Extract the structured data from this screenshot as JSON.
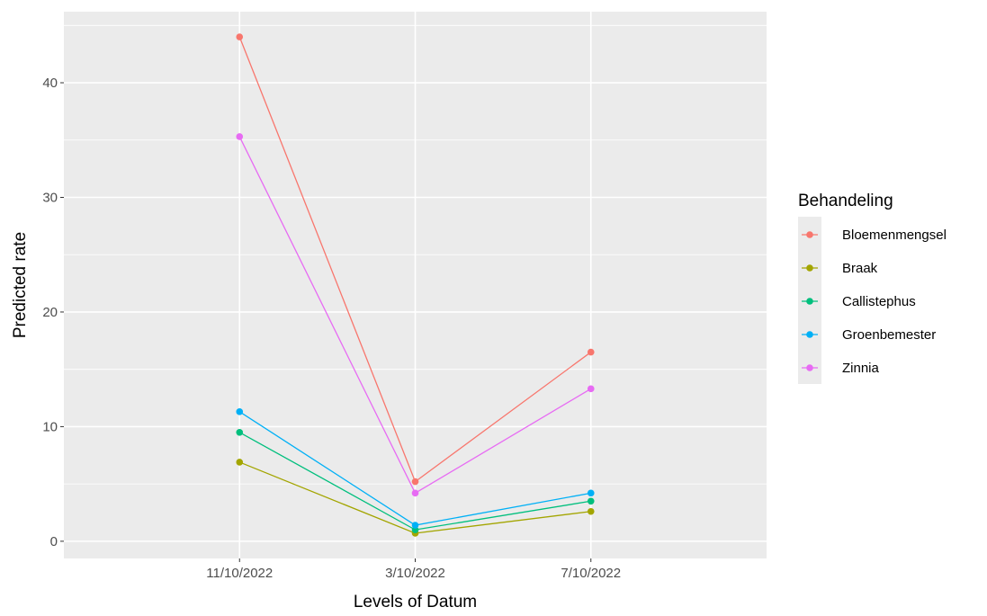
{
  "chart_data": {
    "type": "line",
    "title": "",
    "xlabel": "Levels of Datum",
    "ylabel": "Predicted rate",
    "categories": [
      "11/10/2022",
      "3/10/2022",
      "7/10/2022"
    ],
    "ylim": [
      -1.5,
      46.2
    ],
    "yticks": [
      0,
      10,
      20,
      30,
      40
    ],
    "grid": true,
    "legend": {
      "title": "Behandeling",
      "position": "right"
    },
    "series": [
      {
        "name": "Bloemenmengsel",
        "color": "#F8766D",
        "values": [
          44.0,
          5.2,
          16.5
        ]
      },
      {
        "name": "Braak",
        "color": "#A3A500",
        "values": [
          6.9,
          0.7,
          2.6
        ]
      },
      {
        "name": "Callistephus",
        "color": "#00BF7D",
        "values": [
          9.5,
          1.0,
          3.5
        ]
      },
      {
        "name": "Groenbemester",
        "color": "#00B0F6",
        "values": [
          11.3,
          1.4,
          4.2
        ]
      },
      {
        "name": "Zinnia",
        "color": "#E76BF3",
        "values": [
          35.3,
          4.2,
          13.3
        ]
      }
    ]
  }
}
